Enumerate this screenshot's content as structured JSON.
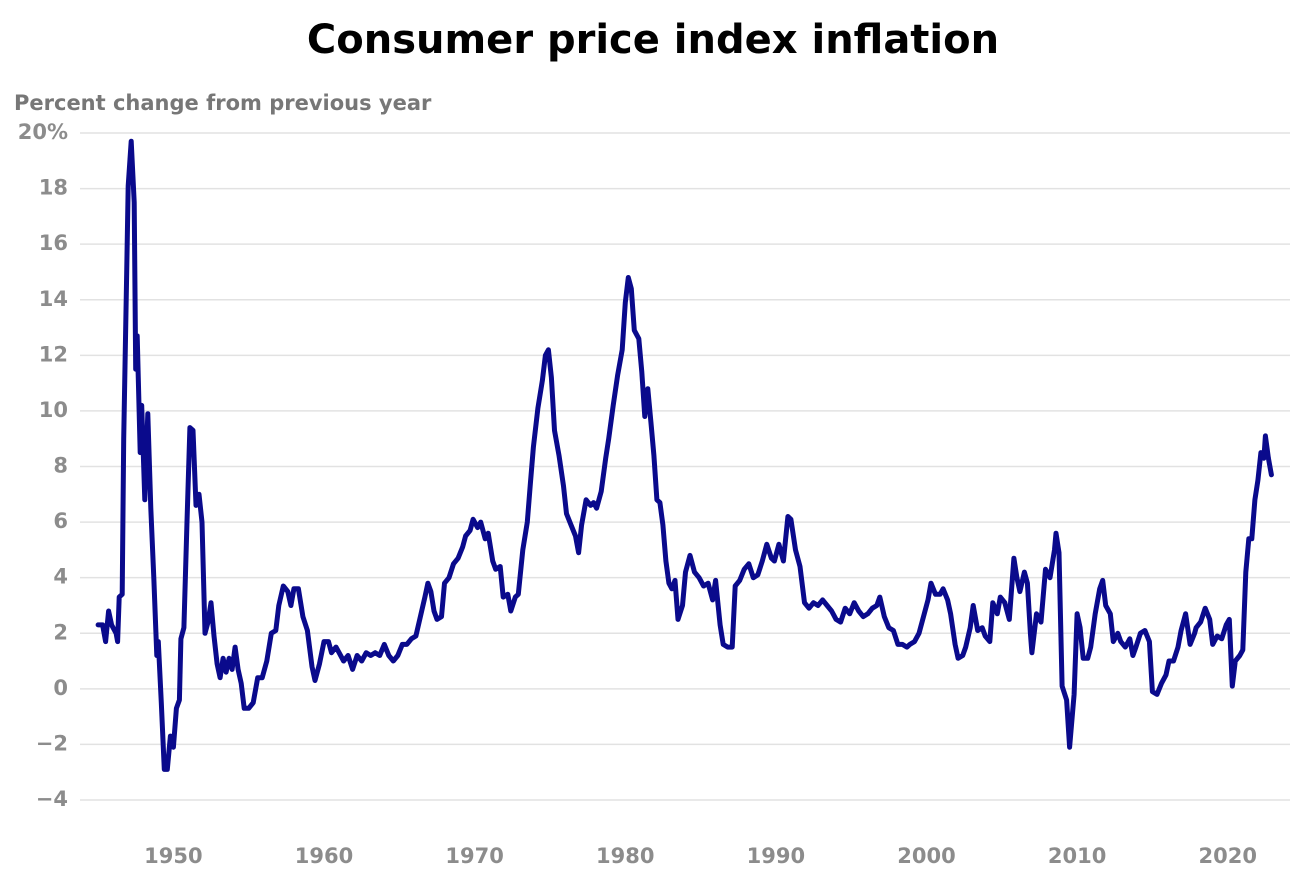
{
  "chart_data": {
    "type": "line",
    "title": "Consumer price index inflation",
    "y_label": "Percent change from previous year",
    "color": "#0a0a8c",
    "grid": true,
    "xlim": [
      1944,
      2024
    ],
    "ylim": [
      -4,
      20
    ],
    "xticks": [
      1950,
      1960,
      1970,
      1980,
      1990,
      2000,
      2010,
      2020
    ],
    "yticks": [
      {
        "value": -4,
        "label": "−4"
      },
      {
        "value": -2,
        "label": "−2"
      },
      0,
      2,
      4,
      6,
      8,
      10,
      12,
      14,
      16,
      18,
      {
        "value": 20,
        "label": "20%"
      }
    ],
    "x": [
      1945.0,
      1945.3,
      1945.5,
      1945.7,
      1945.9,
      1946.2,
      1946.3,
      1946.4,
      1946.6,
      1946.7,
      1946.9,
      1947.0,
      1947.2,
      1947.4,
      1947.5,
      1947.6,
      1947.8,
      1947.9,
      1948.1,
      1948.3,
      1948.5,
      1948.7,
      1948.9,
      1949.0,
      1949.2,
      1949.4,
      1949.6,
      1949.8,
      1950.0,
      1950.2,
      1950.4,
      1950.5,
      1950.7,
      1950.9,
      1951.1,
      1951.3,
      1951.5,
      1951.7,
      1951.9,
      1952.1,
      1952.3,
      1952.5,
      1952.7,
      1952.9,
      1953.1,
      1953.3,
      1953.5,
      1953.7,
      1953.9,
      1954.1,
      1954.3,
      1954.5,
      1954.7,
      1955.0,
      1955.3,
      1955.6,
      1955.9,
      1956.2,
      1956.5,
      1956.8,
      1957.0,
      1957.3,
      1957.6,
      1957.8,
      1958.0,
      1958.3,
      1958.6,
      1958.9,
      1959.2,
      1959.4,
      1959.7,
      1960.0,
      1960.3,
      1960.5,
      1960.8,
      1961.0,
      1961.3,
      1961.6,
      1961.9,
      1962.2,
      1962.5,
      1962.8,
      1963.1,
      1963.4,
      1963.7,
      1964.0,
      1964.3,
      1964.6,
      1964.9,
      1965.2,
      1965.5,
      1965.8,
      1966.1,
      1966.4,
      1966.7,
      1966.9,
      1967.1,
      1967.3,
      1967.5,
      1967.8,
      1968.0,
      1968.3,
      1968.6,
      1968.9,
      1969.2,
      1969.4,
      1969.7,
      1969.9,
      1970.2,
      1970.4,
      1970.7,
      1970.9,
      1971.2,
      1971.4,
      1971.7,
      1971.9,
      1972.2,
      1972.4,
      1972.7,
      1972.9,
      1973.2,
      1973.5,
      1973.7,
      1973.9,
      1974.2,
      1974.5,
      1974.7,
      1974.9,
      1975.1,
      1975.3,
      1975.6,
      1975.9,
      1976.1,
      1976.4,
      1976.7,
      1976.9,
      1977.1,
      1977.4,
      1977.7,
      1977.9,
      1978.1,
      1978.4,
      1978.7,
      1978.9,
      1979.2,
      1979.5,
      1979.8,
      1980.0,
      1980.2,
      1980.4,
      1980.6,
      1980.9,
      1981.1,
      1981.3,
      1981.5,
      1981.7,
      1981.9,
      1982.1,
      1982.3,
      1982.5,
      1982.7,
      1982.9,
      1983.1,
      1983.3,
      1983.5,
      1983.8,
      1984.0,
      1984.3,
      1984.6,
      1984.9,
      1985.2,
      1985.5,
      1985.8,
      1986.0,
      1986.3,
      1986.5,
      1986.8,
      1987.1,
      1987.3,
      1987.6,
      1987.9,
      1988.2,
      1988.5,
      1988.8,
      1989.1,
      1989.4,
      1989.7,
      1989.9,
      1990.2,
      1990.5,
      1990.8,
      1991.0,
      1991.3,
      1991.6,
      1991.9,
      1992.2,
      1992.5,
      1992.8,
      1993.1,
      1993.4,
      1993.7,
      1994.0,
      1994.3,
      1994.6,
      1994.9,
      1995.2,
      1995.5,
      1995.8,
      1996.1,
      1996.4,
      1996.7,
      1996.9,
      1997.2,
      1997.5,
      1997.8,
      1998.1,
      1998.4,
      1998.7,
      1998.9,
      1999.2,
      1999.5,
      1999.8,
      2000.1,
      2000.3,
      2000.6,
      2000.9,
      2001.1,
      2001.4,
      2001.6,
      2001.9,
      2002.1,
      2002.4,
      2002.6,
      2002.9,
      2003.1,
      2003.4,
      2003.7,
      2003.9,
      2004.2,
      2004.4,
      2004.7,
      2004.9,
      2005.2,
      2005.5,
      2005.8,
      2006.0,
      2006.2,
      2006.5,
      2006.7,
      2006.9,
      2007.0,
      2007.3,
      2007.6,
      2007.9,
      2008.2,
      2008.5,
      2008.6,
      2008.8,
      2009.0,
      2009.3,
      2009.5,
      2009.8,
      2010.0,
      2010.2,
      2010.4,
      2010.7,
      2010.9,
      2011.2,
      2011.5,
      2011.7,
      2011.9,
      2012.2,
      2012.4,
      2012.7,
      2012.9,
      2013.2,
      2013.5,
      2013.7,
      2013.9,
      2014.2,
      2014.5,
      2014.8,
      2015.0,
      2015.3,
      2015.6,
      2015.9,
      2016.1,
      2016.4,
      2016.7,
      2016.9,
      2017.2,
      2017.5,
      2017.8,
      2017.9,
      2018.2,
      2018.5,
      2018.8,
      2019.0,
      2019.3,
      2019.6,
      2019.9,
      2020.1,
      2020.3,
      2020.5,
      2020.8,
      2021.0,
      2021.2,
      2021.4,
      2021.6,
      2021.8,
      2022.0,
      2022.2,
      2022.4,
      2022.5,
      2022.7,
      2022.9
    ],
    "values": [
      2.3,
      2.3,
      1.7,
      2.8,
      2.3,
      2.0,
      1.7,
      3.3,
      3.4,
      9.0,
      15,
      18.1,
      19.7,
      17.5,
      11.5,
      12.7,
      8.5,
      10.2,
      6.8,
      9.9,
      6.5,
      4.0,
      1.2,
      1.7,
      -0.5,
      -2.9,
      -2.9,
      -1.7,
      -2.1,
      -0.7,
      -0.4,
      1.8,
      2.2,
      5.9,
      9.4,
      9.3,
      6.6,
      7.0,
      6.0,
      2.0,
      2.4,
      3.1,
      1.9,
      0.9,
      0.4,
      1.1,
      0.6,
      1.1,
      0.7,
      1.5,
      0.7,
      0.2,
      -0.7,
      -0.7,
      -0.5,
      0.4,
      0.4,
      1.0,
      2.0,
      2.1,
      3.0,
      3.7,
      3.5,
      3.0,
      3.6,
      3.6,
      2.6,
      2.1,
      0.8,
      0.3,
      0.9,
      1.7,
      1.7,
      1.3,
      1.5,
      1.3,
      1.0,
      1.2,
      0.7,
      1.2,
      1.0,
      1.3,
      1.2,
      1.3,
      1.2,
      1.6,
      1.2,
      1.0,
      1.2,
      1.6,
      1.6,
      1.8,
      1.9,
      2.6,
      3.3,
      3.8,
      3.5,
      2.8,
      2.5,
      2.6,
      3.8,
      4.0,
      4.5,
      4.7,
      5.1,
      5.5,
      5.7,
      6.1,
      5.8,
      6.0,
      5.4,
      5.6,
      4.6,
      4.3,
      4.4,
      3.3,
      3.4,
      2.8,
      3.3,
      3.4,
      5.0,
      6.0,
      7.4,
      8.7,
      10.1,
      11.1,
      12.0,
      12.2,
      11.2,
      9.3,
      8.4,
      7.3,
      6.3,
      5.9,
      5.5,
      4.9,
      5.9,
      6.8,
      6.6,
      6.7,
      6.5,
      7.1,
      8.3,
      9.0,
      10.2,
      11.3,
      12.2,
      13.9,
      14.8,
      14.4,
      12.9,
      12.6,
      11.4,
      9.8,
      10.8,
      9.6,
      8.4,
      6.8,
      6.7,
      5.9,
      4.6,
      3.8,
      3.6,
      3.9,
      2.5,
      3.0,
      4.2,
      4.8,
      4.2,
      4.0,
      3.7,
      3.8,
      3.2,
      3.9,
      2.3,
      1.6,
      1.5,
      1.5,
      3.7,
      3.9,
      4.3,
      4.5,
      4.0,
      4.1,
      4.6,
      5.2,
      4.7,
      4.6,
      5.2,
      4.6,
      6.2,
      6.1,
      5.0,
      4.4,
      3.1,
      2.9,
      3.1,
      3.0,
      3.2,
      3.0,
      2.8,
      2.5,
      2.4,
      2.9,
      2.7,
      3.1,
      2.8,
      2.6,
      2.7,
      2.9,
      3.0,
      3.3,
      2.6,
      2.2,
      2.1,
      1.6,
      1.6,
      1.5,
      1.6,
      1.7,
      2.0,
      2.6,
      3.2,
      3.8,
      3.4,
      3.4,
      3.6,
      3.2,
      2.7,
      1.6,
      1.1,
      1.2,
      1.5,
      2.2,
      3.0,
      2.1,
      2.2,
      1.9,
      1.7,
      3.1,
      2.7,
      3.3,
      3.1,
      2.5,
      4.7,
      4.0,
      3.5,
      4.2,
      3.8,
      2.0,
      1.3,
      2.7,
      2.4,
      4.3,
      4.0,
      5.0,
      5.6,
      4.9,
      0.1,
      -0.4,
      -2.1,
      -0.2,
      2.7,
      2.2,
      1.1,
      1.1,
      1.5,
      2.7,
      3.6,
      3.9,
      3.0,
      2.7,
      1.7,
      2.0,
      1.7,
      1.5,
      1.8,
      1.2,
      1.5,
      2.0,
      2.1,
      1.7,
      -0.1,
      -0.2,
      0.2,
      0.5,
      1.0,
      1.0,
      1.5,
      2.1,
      2.7,
      1.6,
      2.0,
      2.2,
      2.4,
      2.9,
      2.5,
      1.6,
      1.9,
      1.8,
      2.3,
      2.5,
      0.1,
      1.0,
      1.2,
      1.4,
      4.2,
      5.4,
      5.4,
      6.8,
      7.5,
      8.5,
      8.3,
      9.1,
      8.3,
      7.7
    ]
  }
}
